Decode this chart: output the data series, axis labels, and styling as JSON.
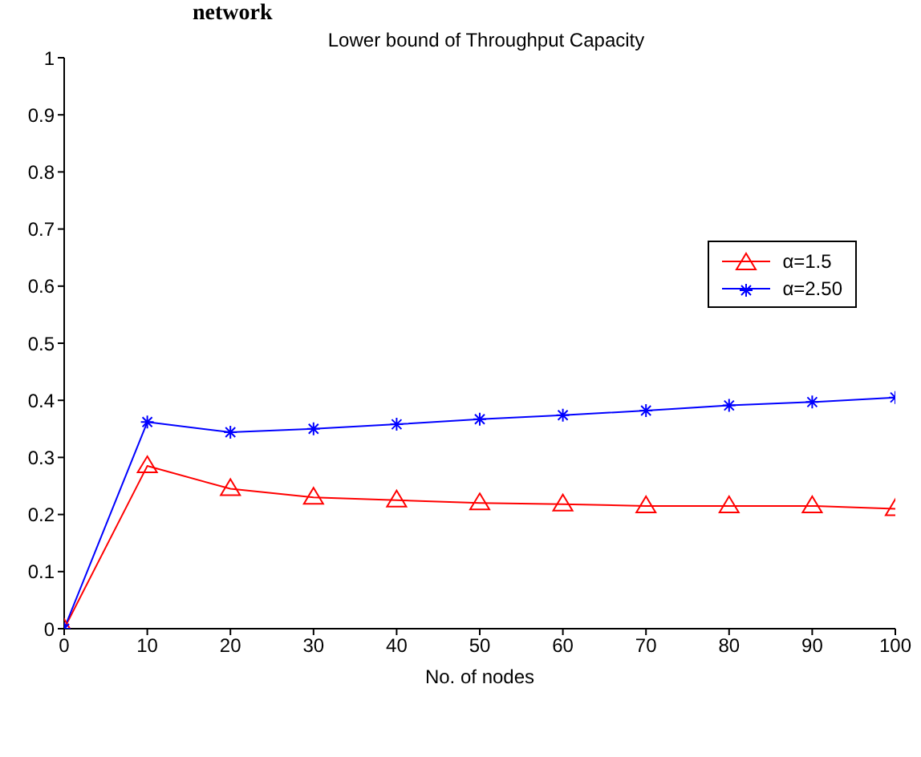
{
  "chart_data": {
    "type": "line",
    "title": "Lower bound of Throughput Capacity",
    "xlabel": "No. of nodes",
    "annotations": [
      "network"
    ],
    "x": [
      0,
      10,
      20,
      30,
      40,
      50,
      60,
      70,
      80,
      90,
      100
    ],
    "series": [
      {
        "name": "α=1.5",
        "color": "#ff0000",
        "marker": "triangle",
        "values": [
          0,
          0.285,
          0.245,
          0.23,
          0.225,
          0.22,
          0.218,
          0.215,
          0.215,
          0.215,
          0.21
        ]
      },
      {
        "name": "α=2.50",
        "color": "#0000ff",
        "marker": "cross",
        "values": [
          0,
          0.362,
          0.344,
          0.35,
          0.358,
          0.367,
          0.374,
          0.382,
          0.391,
          0.397,
          0.405
        ]
      }
    ],
    "xlim": [
      0,
      100
    ],
    "xticks": [
      0,
      10,
      20,
      30,
      40,
      50,
      60,
      70,
      80,
      90,
      100
    ],
    "ylim": [
      0,
      1
    ],
    "yticks": [
      0,
      0.1,
      0.2,
      0.3,
      0.4,
      0.5,
      0.6,
      0.7,
      0.8,
      0.9,
      1
    ],
    "grid": false,
    "legend": "right",
    "line_style": "solid"
  }
}
